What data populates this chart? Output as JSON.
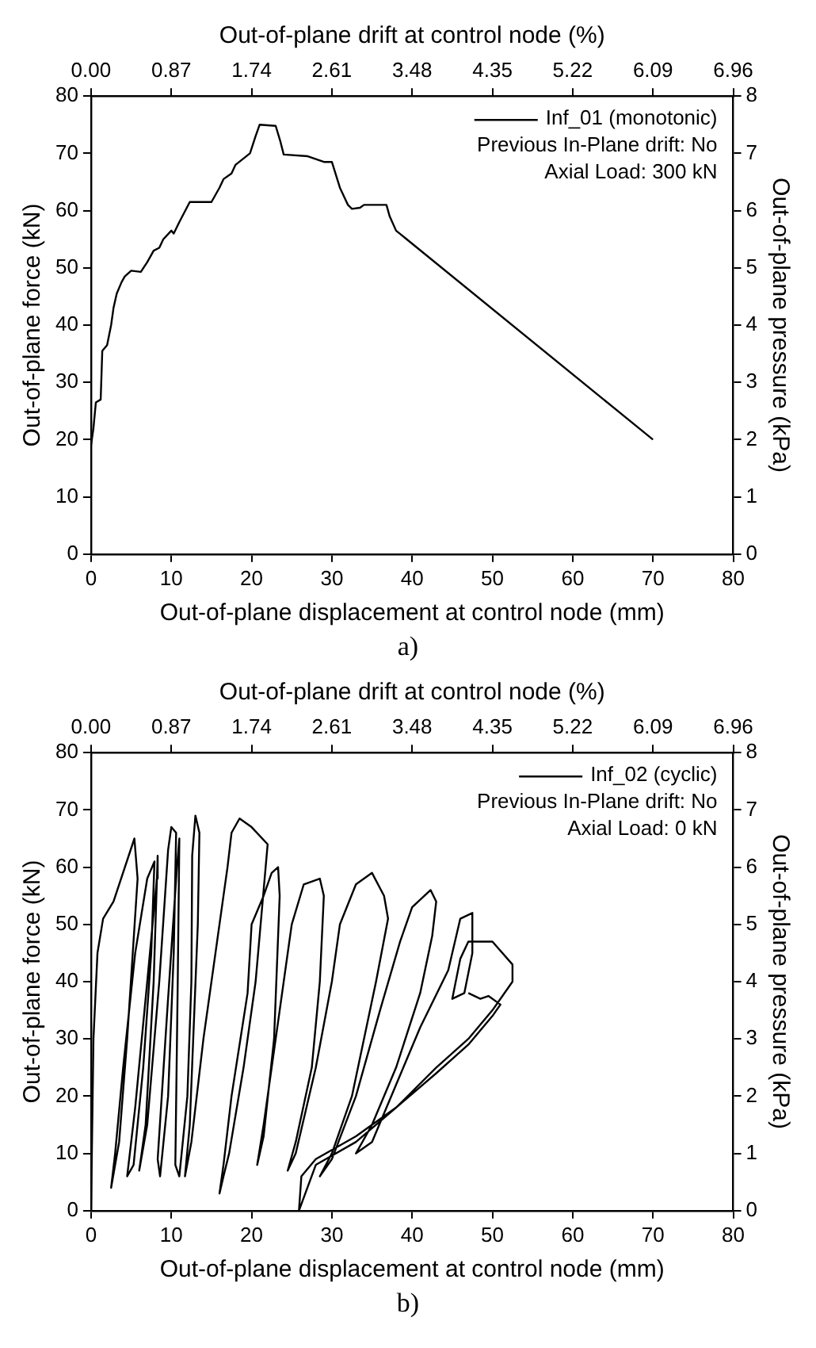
{
  "chart_data": [
    {
      "type": "line",
      "xlabel": "Out-of-plane displacement at control node (mm)",
      "x2label": "Out-of-plane drift at control node (%)",
      "ylabel": "Out-of-plane force (kN)",
      "y2label": "Out-of-plane pressure (kPa)",
      "annotations": [
        "Previous In-Plane drift: No",
        "Axial Load: 300 kN",
        "a)"
      ],
      "xlim": [
        0,
        80
      ],
      "xticks": [
        0,
        10,
        20,
        30,
        40,
        50,
        60,
        70,
        80
      ],
      "x2lim": [
        0,
        6.96
      ],
      "x2ticks": [
        {
          "value": 0,
          "label": "0.00"
        },
        0.87,
        1.74,
        2.61,
        3.48,
        4.35,
        5.22,
        6.09,
        6.96
      ],
      "ylim": [
        0,
        80
      ],
      "yticks": [
        0,
        10,
        20,
        30,
        40,
        50,
        60,
        70,
        80
      ],
      "y2lim": [
        0,
        8
      ],
      "y2ticks": [
        0,
        1,
        2,
        3,
        4,
        5,
        6,
        7,
        8
      ],
      "grid": false,
      "legend": "top right",
      "series": [
        {
          "name": "Inf_01 (monotonic)",
          "color": "#000000",
          "x": [
            0,
            0.3,
            0.6,
            1.2,
            1.4,
            2,
            2.5,
            2.8,
            3.2,
            3.8,
            4.2,
            5,
            6.2,
            7,
            7.8,
            8.5,
            9,
            10,
            10.3,
            11,
            12.3,
            15,
            16,
            16.5,
            17.5,
            18,
            19.8,
            20.5,
            21,
            23,
            23.6,
            24,
            27,
            29,
            30,
            31,
            32,
            32.5,
            33.5,
            34,
            36.8,
            37.2,
            38,
            70
          ],
          "values": [
            19,
            22,
            26.5,
            27,
            35.5,
            36.5,
            40,
            43,
            45.5,
            47.5,
            48.5,
            49.5,
            49.3,
            51,
            53,
            53.5,
            55,
            56.5,
            56,
            58,
            61.5,
            61.5,
            64,
            65.5,
            66.5,
            68,
            70,
            73,
            75,
            74.8,
            72,
            69.8,
            69.5,
            68.5,
            68.5,
            64,
            61,
            60.3,
            60.5,
            61,
            61,
            59,
            56.5,
            20
          ]
        }
      ]
    },
    {
      "type": "line",
      "xlabel": "Out-of-plane displacement at control node (mm)",
      "x2label": "Out-of-plane drift at control node (%)",
      "ylabel": "Out-of-plane force (kN)",
      "y2label": "Out-of-plane pressure (kPa)",
      "annotations": [
        "Previous In-Plane drift: No",
        "Axial Load: 0 kN",
        "b)"
      ],
      "xlim": [
        0,
        80
      ],
      "xticks": [
        0,
        10,
        20,
        30,
        40,
        50,
        60,
        70,
        80
      ],
      "x2lim": [
        0,
        6.96
      ],
      "x2ticks": [
        {
          "value": 0,
          "label": "0.00"
        },
        0.87,
        1.74,
        2.61,
        3.48,
        4.35,
        5.22,
        6.09,
        6.96
      ],
      "ylim": [
        0,
        80
      ],
      "yticks": [
        0,
        10,
        20,
        30,
        40,
        50,
        60,
        70,
        80
      ],
      "y2lim": [
        0,
        8
      ],
      "y2ticks": [
        0,
        1,
        2,
        3,
        4,
        5,
        6,
        7,
        8
      ],
      "grid": false,
      "legend": "top right",
      "series": [
        {
          "name": "Inf_02 (cyclic)",
          "color": "#000000",
          "x": [
            0,
            0.3,
            0.8,
            1.5,
            2.8,
            5.4,
            5.8,
            4.5,
            3.5,
            2.5,
            3,
            4,
            5.5,
            7,
            7.9,
            7.5,
            6.5,
            5.3,
            4.5,
            5.5,
            7,
            8.2,
            8.3,
            7.8,
            6.8,
            6,
            7,
            8.5,
            9.6,
            10,
            10.6,
            10.3,
            9.6,
            8.6,
            8.3,
            9.5,
            10.7,
            11,
            10.8,
            10.5,
            11,
            12,
            12.5,
            12.6,
            13,
            13.5,
            13.3,
            12.3,
            11.7,
            12.5,
            14,
            15.5,
            16.5,
            17,
            17.5,
            18.5,
            20,
            22,
            20.5,
            19,
            17.2,
            16.5,
            16,
            16.5,
            17.5,
            19.5,
            20,
            21.5,
            22.5,
            23.3,
            23.5,
            22.8,
            21.5,
            20.7,
            21.5,
            23.5,
            25,
            26.5,
            28.5,
            29,
            28.5,
            27.5,
            25.5,
            24.5,
            25.5,
            28,
            30,
            31,
            33,
            35,
            36.5,
            37,
            35.5,
            32.5,
            30,
            28.5,
            30,
            33,
            36,
            38.5,
            40,
            42.3,
            43,
            42.5,
            41,
            38,
            35,
            33,
            35,
            38,
            41,
            44.5,
            46,
            47.5,
            47.5,
            46.5,
            45,
            46,
            47,
            50,
            52.5,
            52.5,
            50,
            47,
            43,
            38,
            33,
            28,
            25.9,
            26.2,
            28,
            33,
            38,
            43,
            47,
            50,
            51,
            49.5,
            48.5,
            47
          ],
          "values": [
            0,
            30,
            45,
            51,
            54,
            65,
            58,
            30,
            12,
            4,
            10,
            25,
            45,
            58,
            61,
            45,
            25,
            8,
            6,
            18,
            40,
            58,
            62,
            40,
            15,
            7,
            15,
            40,
            63,
            67,
            66,
            45,
            20,
            6,
            9,
            35,
            60,
            65,
            40,
            8,
            6,
            20,
            40,
            62,
            69,
            66,
            50,
            15,
            6,
            12,
            30,
            45,
            55,
            60,
            66,
            68.5,
            67,
            64,
            40,
            25,
            10,
            6,
            3,
            8,
            20,
            38,
            50,
            55,
            59,
            60,
            55,
            30,
            13,
            8,
            15,
            35,
            50,
            57,
            58,
            55,
            40,
            25,
            12,
            7,
            10,
            25,
            40,
            50,
            57,
            59,
            55,
            51,
            40,
            20,
            10,
            6,
            9,
            20,
            35,
            47,
            53,
            56,
            54,
            48,
            38,
            25,
            15,
            10,
            12,
            22,
            32,
            42,
            51,
            52,
            45,
            38,
            37,
            44,
            47,
            47,
            43,
            40,
            35,
            30,
            25,
            18,
            12,
            8,
            0,
            6,
            9,
            13,
            18,
            24,
            29,
            34,
            36,
            37.5,
            37,
            38
          ]
        }
      ]
    }
  ]
}
